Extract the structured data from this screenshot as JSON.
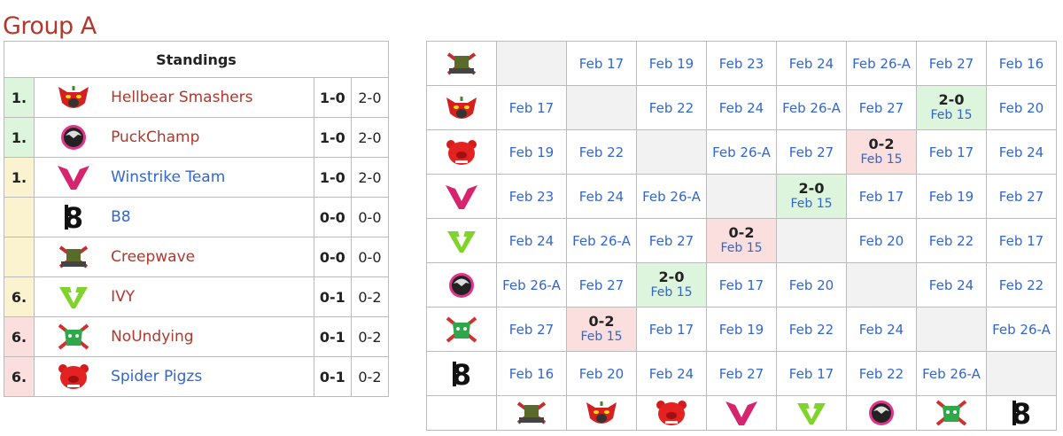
{
  "title": "Group A",
  "standings": {
    "header": "Standings",
    "rows": [
      {
        "rank": "1.",
        "rank_color": "green",
        "team": "Hellbear Smashers",
        "icon": "hellbear-logo",
        "link": "red",
        "series": "1-0",
        "games": "2-0"
      },
      {
        "rank": "1.",
        "rank_color": "green",
        "team": "PuckChamp",
        "icon": "puckchamp-logo",
        "link": "red",
        "series": "1-0",
        "games": "2-0"
      },
      {
        "rank": "1.",
        "rank_color": "yellow",
        "team": "Winstrike Team",
        "icon": "winstrike-logo",
        "link": "blue",
        "series": "1-0",
        "games": "2-0"
      },
      {
        "rank": "",
        "rank_color": "yellow",
        "team": "B8",
        "icon": "b8-logo",
        "link": "blue",
        "series": "0-0",
        "games": "0-0"
      },
      {
        "rank": "",
        "rank_color": "yellow",
        "team": "Creepwave",
        "icon": "creepwave-logo",
        "link": "red",
        "series": "0-0",
        "games": "0-0"
      },
      {
        "rank": "6.",
        "rank_color": "yellow",
        "team": "IVY",
        "icon": "ivy-logo",
        "link": "red",
        "series": "0-1",
        "games": "0-2"
      },
      {
        "rank": "6.",
        "rank_color": "red",
        "team": "NoUndying",
        "icon": "noundying-logo",
        "link": "red",
        "series": "0-1",
        "games": "0-2"
      },
      {
        "rank": "6.",
        "rank_color": "red",
        "team": "Spider Pigzs",
        "icon": "spiderpigzs-logo",
        "link": "blue",
        "series": "0-1",
        "games": "0-2"
      }
    ]
  },
  "matrix": {
    "teams": [
      "creepwave-logo",
      "hellbear-logo",
      "spiderpigzs-logo",
      "winstrike-logo",
      "ivy-logo",
      "puckchamp-logo",
      "noundying-logo",
      "b8-logo"
    ],
    "rows": [
      [
        null,
        "Feb 17",
        "Feb 19",
        "Feb 23",
        "Feb 24",
        "Feb 26-A",
        "Feb 27",
        "Feb 16"
      ],
      [
        "Feb 17",
        null,
        "Feb 22",
        "Feb 24",
        "Feb 26-A",
        "Feb 27",
        {
          "score": "2-0",
          "date": "Feb 15",
          "result": "win"
        },
        "Feb 20"
      ],
      [
        "Feb 19",
        "Feb 22",
        null,
        "Feb 26-A",
        "Feb 27",
        {
          "score": "0-2",
          "date": "Feb 15",
          "result": "loss"
        },
        "Feb 17",
        "Feb 24"
      ],
      [
        "Feb 23",
        "Feb 24",
        "Feb 26-A",
        null,
        {
          "score": "2-0",
          "date": "Feb 15",
          "result": "win"
        },
        "Feb 17",
        "Feb 19",
        "Feb 27"
      ],
      [
        "Feb 24",
        "Feb 26-A",
        "Feb 27",
        {
          "score": "0-2",
          "date": "Feb 15",
          "result": "loss"
        },
        null,
        "Feb 20",
        "Feb 22",
        "Feb 17"
      ],
      [
        "Feb 26-A",
        "Feb 27",
        {
          "score": "2-0",
          "date": "Feb 15",
          "result": "win"
        },
        "Feb 17",
        "Feb 20",
        null,
        "Feb 24",
        "Feb 22"
      ],
      [
        "Feb 27",
        {
          "score": "0-2",
          "date": "Feb 15",
          "result": "loss"
        },
        "Feb 17",
        "Feb 19",
        "Feb 22",
        "Feb 24",
        null,
        "Feb 26-A"
      ],
      [
        "Feb 16",
        "Feb 20",
        "Feb 24",
        "Feb 27",
        "Feb 17",
        "Feb 22",
        "Feb 26-A",
        null
      ]
    ]
  },
  "colors": {
    "title": "#b0382c",
    "link_blue": "#3366cc",
    "link_red": "#b0382c",
    "win": "#ddf4dd",
    "loss": "#fbdede",
    "tie": "#fbf2d0"
  }
}
